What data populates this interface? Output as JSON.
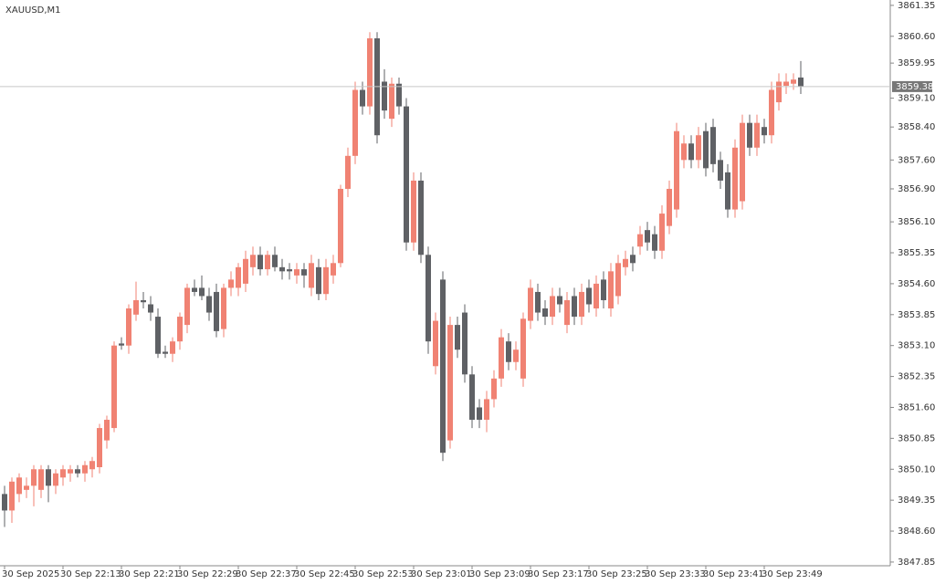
{
  "chart_data": {
    "type": "candlestick",
    "title": "XAUUSD,M1",
    "up_color": "#f08273",
    "down_color": "#5f6165",
    "xlim": [
      -0.625,
      121.25
    ],
    "ylim": [
      3847.76,
      3861.48
    ],
    "candles": [
      [
        3849.5,
        3849.7,
        3848.7,
        3849.1
      ],
      [
        3849.1,
        3849.9,
        3848.8,
        3849.8
      ],
      [
        3849.5,
        3850.0,
        3849.3,
        3849.9
      ],
      [
        3849.6,
        3849.9,
        3849.4,
        3849.7
      ],
      [
        3849.7,
        3850.2,
        3849.2,
        3850.1
      ],
      [
        3849.6,
        3850.2,
        3849.4,
        3850.1
      ],
      [
        3850.1,
        3850.2,
        3849.3,
        3849.7
      ],
      [
        3849.7,
        3850.1,
        3849.5,
        3850.0
      ],
      [
        3849.9,
        3850.2,
        3849.7,
        3850.1
      ],
      [
        3850.0,
        3850.2,
        3849.8,
        3850.1
      ],
      [
        3850.1,
        3850.2,
        3849.9,
        3850.0
      ],
      [
        3850.0,
        3850.3,
        3849.8,
        3850.2
      ],
      [
        3850.1,
        3850.4,
        3849.9,
        3850.3
      ],
      [
        3850.15,
        3851.2,
        3850.0,
        3851.1
      ],
      [
        3850.8,
        3851.4,
        3850.6,
        3851.3
      ],
      [
        3851.1,
        3853.2,
        3851.0,
        3853.1
      ],
      [
        3853.15,
        3853.3,
        3853.0,
        3853.1
      ],
      [
        3853.1,
        3854.1,
        3852.9,
        3854.0
      ],
      [
        3853.85,
        3854.65,
        3853.7,
        3854.2
      ],
      [
        3854.2,
        3854.4,
        3854.0,
        3854.15
      ],
      [
        3854.1,
        3854.3,
        3853.7,
        3853.9
      ],
      [
        3853.8,
        3854.0,
        3852.8,
        3852.9
      ],
      [
        3852.95,
        3853.1,
        3852.8,
        3852.9
      ],
      [
        3852.9,
        3853.3,
        3852.7,
        3853.2
      ],
      [
        3853.2,
        3853.9,
        3853.0,
        3853.8
      ],
      [
        3853.6,
        3854.6,
        3853.4,
        3854.5
      ],
      [
        3854.5,
        3854.7,
        3854.3,
        3854.4
      ],
      [
        3854.5,
        3854.8,
        3854.2,
        3854.3
      ],
      [
        3854.3,
        3854.5,
        3853.7,
        3853.9
      ],
      [
        3854.4,
        3854.6,
        3853.3,
        3853.45
      ],
      [
        3853.5,
        3854.6,
        3853.3,
        3854.5
      ],
      [
        3854.5,
        3854.9,
        3854.3,
        3854.7
      ],
      [
        3854.5,
        3855.1,
        3854.3,
        3855.0
      ],
      [
        3854.6,
        3855.4,
        3854.4,
        3855.2
      ],
      [
        3855.0,
        3855.5,
        3854.8,
        3855.3
      ],
      [
        3855.3,
        3855.5,
        3854.8,
        3854.95
      ],
      [
        3854.95,
        3855.4,
        3854.8,
        3855.3
      ],
      [
        3855.3,
        3855.5,
        3854.9,
        3855.0
      ],
      [
        3855.0,
        3855.2,
        3854.7,
        3854.9
      ],
      [
        3854.95,
        3855.1,
        3854.7,
        3854.9
      ],
      [
        3854.8,
        3855.1,
        3854.6,
        3854.95
      ],
      [
        3854.95,
        3855.1,
        3854.5,
        3854.8
      ],
      [
        3854.5,
        3855.3,
        3854.3,
        3855.1
      ],
      [
        3855.0,
        3855.2,
        3854.2,
        3854.35
      ],
      [
        3854.35,
        3855.2,
        3854.2,
        3855.0
      ],
      [
        3854.8,
        3855.3,
        3854.6,
        3855.1
      ],
      [
        3855.1,
        3857.0,
        3855.0,
        3856.9
      ],
      [
        3856.9,
        3857.9,
        3856.7,
        3857.7
      ],
      [
        3857.7,
        3859.5,
        3857.5,
        3859.3
      ],
      [
        3859.3,
        3859.5,
        3858.7,
        3858.9
      ],
      [
        3858.9,
        3860.7,
        3858.7,
        3860.55
      ],
      [
        3860.55,
        3860.7,
        3858.0,
        3858.2
      ],
      [
        3859.5,
        3859.8,
        3858.6,
        3858.8
      ],
      [
        3858.6,
        3859.6,
        3858.4,
        3859.45
      ],
      [
        3859.45,
        3859.6,
        3858.7,
        3858.9
      ],
      [
        3858.9,
        3859.1,
        3855.4,
        3855.6
      ],
      [
        3855.6,
        3857.3,
        3855.4,
        3857.1
      ],
      [
        3857.1,
        3857.3,
        3855.1,
        3855.3
      ],
      [
        3855.3,
        3855.5,
        3852.9,
        3853.2
      ],
      [
        3852.6,
        3853.9,
        3852.4,
        3853.7
      ],
      [
        3854.7,
        3854.9,
        3850.3,
        3850.5
      ],
      [
        3850.8,
        3853.8,
        3850.6,
        3853.6
      ],
      [
        3853.6,
        3853.8,
        3852.8,
        3853.0
      ],
      [
        3853.9,
        3854.1,
        3852.2,
        3852.4
      ],
      [
        3852.4,
        3852.6,
        3851.1,
        3851.3
      ],
      [
        3851.6,
        3851.8,
        3851.1,
        3851.3
      ],
      [
        3851.3,
        3852.0,
        3851.0,
        3851.8
      ],
      [
        3851.8,
        3852.5,
        3851.6,
        3852.3
      ],
      [
        3852.3,
        3853.5,
        3852.1,
        3853.3
      ],
      [
        3853.2,
        3853.4,
        3852.5,
        3852.7
      ],
      [
        3852.7,
        3853.2,
        3852.5,
        3853.0
      ],
      [
        3852.3,
        3853.9,
        3852.1,
        3853.75
      ],
      [
        3853.7,
        3854.7,
        3853.5,
        3854.5
      ],
      [
        3854.4,
        3854.6,
        3853.7,
        3853.9
      ],
      [
        3854.0,
        3854.2,
        3853.6,
        3853.8
      ],
      [
        3853.8,
        3854.5,
        3853.6,
        3854.3
      ],
      [
        3854.3,
        3854.5,
        3853.9,
        3854.1
      ],
      [
        3853.6,
        3854.4,
        3853.4,
        3854.2
      ],
      [
        3854.3,
        3854.5,
        3853.6,
        3853.8
      ],
      [
        3853.8,
        3854.6,
        3853.6,
        3854.4
      ],
      [
        3854.5,
        3854.7,
        3853.9,
        3854.1
      ],
      [
        3854.0,
        3854.8,
        3853.8,
        3854.6
      ],
      [
        3854.7,
        3854.9,
        3854.0,
        3854.2
      ],
      [
        3854.0,
        3855.1,
        3853.8,
        3854.9
      ],
      [
        3854.3,
        3855.3,
        3854.1,
        3855.1
      ],
      [
        3855.0,
        3855.4,
        3854.8,
        3855.2
      ],
      [
        3855.3,
        3855.5,
        3854.9,
        3855.1
      ],
      [
        3855.5,
        3856.0,
        3855.3,
        3855.8
      ],
      [
        3855.9,
        3856.1,
        3855.4,
        3855.6
      ],
      [
        3855.8,
        3856.0,
        3855.2,
        3855.4
      ],
      [
        3855.4,
        3856.5,
        3855.2,
        3856.3
      ],
      [
        3856.0,
        3857.1,
        3855.8,
        3856.9
      ],
      [
        3856.4,
        3858.5,
        3856.2,
        3858.3
      ],
      [
        3857.6,
        3858.2,
        3857.4,
        3858.0
      ],
      [
        3858.0,
        3858.2,
        3857.4,
        3857.6
      ],
      [
        3857.6,
        3858.4,
        3857.4,
        3858.2
      ],
      [
        3858.3,
        3858.5,
        3857.2,
        3857.4
      ],
      [
        3858.4,
        3858.6,
        3857.3,
        3857.5
      ],
      [
        3857.6,
        3857.8,
        3856.9,
        3857.1
      ],
      [
        3857.3,
        3857.5,
        3856.2,
        3856.4
      ],
      [
        3856.4,
        3858.1,
        3856.2,
        3857.9
      ],
      [
        3856.6,
        3858.7,
        3856.4,
        3858.5
      ],
      [
        3858.5,
        3858.7,
        3857.7,
        3857.9
      ],
      [
        3857.9,
        3858.7,
        3857.7,
        3858.5
      ],
      [
        3858.4,
        3858.6,
        3858.0,
        3858.2
      ],
      [
        3858.2,
        3859.5,
        3858.0,
        3859.3
      ],
      [
        3859.0,
        3859.7,
        3858.8,
        3859.5
      ],
      [
        3859.4,
        3859.7,
        3859.2,
        3859.5
      ],
      [
        3859.45,
        3859.7,
        3859.3,
        3859.55
      ],
      [
        3859.6,
        3860.0,
        3859.2,
        3859.38
      ]
    ],
    "price_line": 3859.38,
    "yticks": [
      3861.35,
      {
        "value": 3860.6,
        "label": "3860.60"
      },
      3859.95,
      {
        "value": 3859.1,
        "label": "3859.10"
      },
      {
        "value": 3858.4,
        "label": "3858.40"
      },
      {
        "value": 3857.6,
        "label": "3857.60"
      },
      {
        "value": 3856.9,
        "label": "3856.90"
      },
      {
        "value": 3856.1,
        "label": "3856.10"
      },
      3855.35,
      {
        "value": 3854.6,
        "label": "3854.60"
      },
      3853.85,
      {
        "value": 3853.1,
        "label": "3853.10"
      },
      3852.35,
      {
        "value": 3851.6,
        "label": "3851.60"
      },
      3850.85,
      {
        "value": 3850.1,
        "label": "3850.10"
      },
      3849.35,
      {
        "value": 3848.6,
        "label": "3848.60"
      },
      3847.85
    ],
    "xticks": [
      {
        "value": 0,
        "label": "30 Sep 2025"
      },
      {
        "value": 8,
        "label": "30 Sep 22:13"
      },
      {
        "value": 16,
        "label": "30 Sep 22:21"
      },
      {
        "value": 24,
        "label": "30 Sep 22:29"
      },
      {
        "value": 32,
        "label": "30 Sep 22:37"
      },
      {
        "value": 40,
        "label": "30 Sep 22:45"
      },
      {
        "value": 48,
        "label": "30 Sep 22:53"
      },
      {
        "value": 56,
        "label": "30 Sep 23:01"
      },
      {
        "value": 64,
        "label": "30 Sep 23:09"
      },
      {
        "value": 72,
        "label": "30 Sep 23:17"
      },
      {
        "value": 80,
        "label": "30 Sep 23:25"
      },
      {
        "value": 88,
        "label": "30 Sep 23:33"
      },
      {
        "value": 96,
        "label": "30 Sep 23:41"
      },
      {
        "value": 104,
        "label": "30 Sep 23:49"
      }
    ]
  }
}
